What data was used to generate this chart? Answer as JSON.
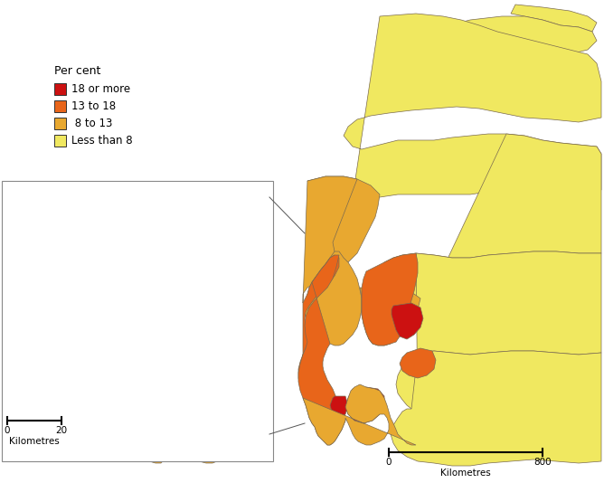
{
  "legend_title": "Per cent",
  "legend_items": [
    {
      "label": "18 or more",
      "color": "#CC1111"
    },
    {
      "label": "13 to 18",
      "color": "#E8651A"
    },
    {
      "label": " 8 to 13",
      "color": "#E8A830"
    },
    {
      "label": "Less than 8",
      "color": "#F0E860"
    }
  ],
  "colors": {
    "red": "#CC1111",
    "orange": "#E8651A",
    "tan": "#E8A830",
    "yellow": "#F0E860",
    "border": "#7a6a50",
    "bg": "#FFFFFF"
  },
  "figsize": [
    6.68,
    5.34
  ],
  "dpi": 100
}
